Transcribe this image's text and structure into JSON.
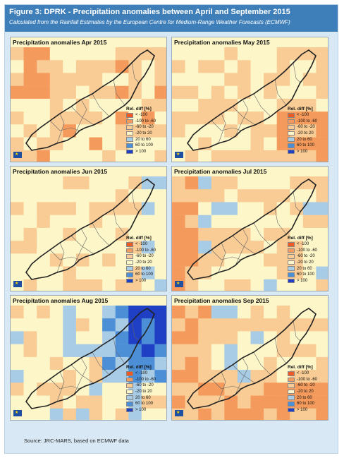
{
  "header": {
    "title": "Figure 3: DPRK - Precipitation anomalies between April and September 2015",
    "subtitle": "Calculated from the Rainfall Estimates by the European Centre for Medium-Range Weather Forecasts (ECMWF)"
  },
  "legend": {
    "title": "Rel. diff [%]",
    "classes": [
      {
        "label": "< -100",
        "color": "#ef5a24"
      },
      {
        "label": "-100 to -60",
        "color": "#f49a5c"
      },
      {
        "label": "-60 to -20",
        "color": "#f8cc94"
      },
      {
        "label": "-20 to 20",
        "color": "#fdf6c8"
      },
      {
        "label": "20 to 60",
        "color": "#a9cce6"
      },
      {
        "label": "60 to 100",
        "color": "#4d8fd6"
      },
      {
        "label": "> 100",
        "color": "#1f3fc4"
      }
    ]
  },
  "panels": [
    {
      "title": "Precipitation anomalies Apr 2015"
    },
    {
      "title": "Precipitation anomalies May 2015"
    },
    {
      "title": "Precipitation anomalies Jun 2015"
    },
    {
      "title": "Precipitation anomalies Jul 2015"
    },
    {
      "title": "Precipitation anomalies Aug 2015"
    },
    {
      "title": "Precipitation anomalies Sep 2015"
    }
  ],
  "logo_text": "★",
  "source": "Source: JRC-MARS, based on ECMWF data"
}
